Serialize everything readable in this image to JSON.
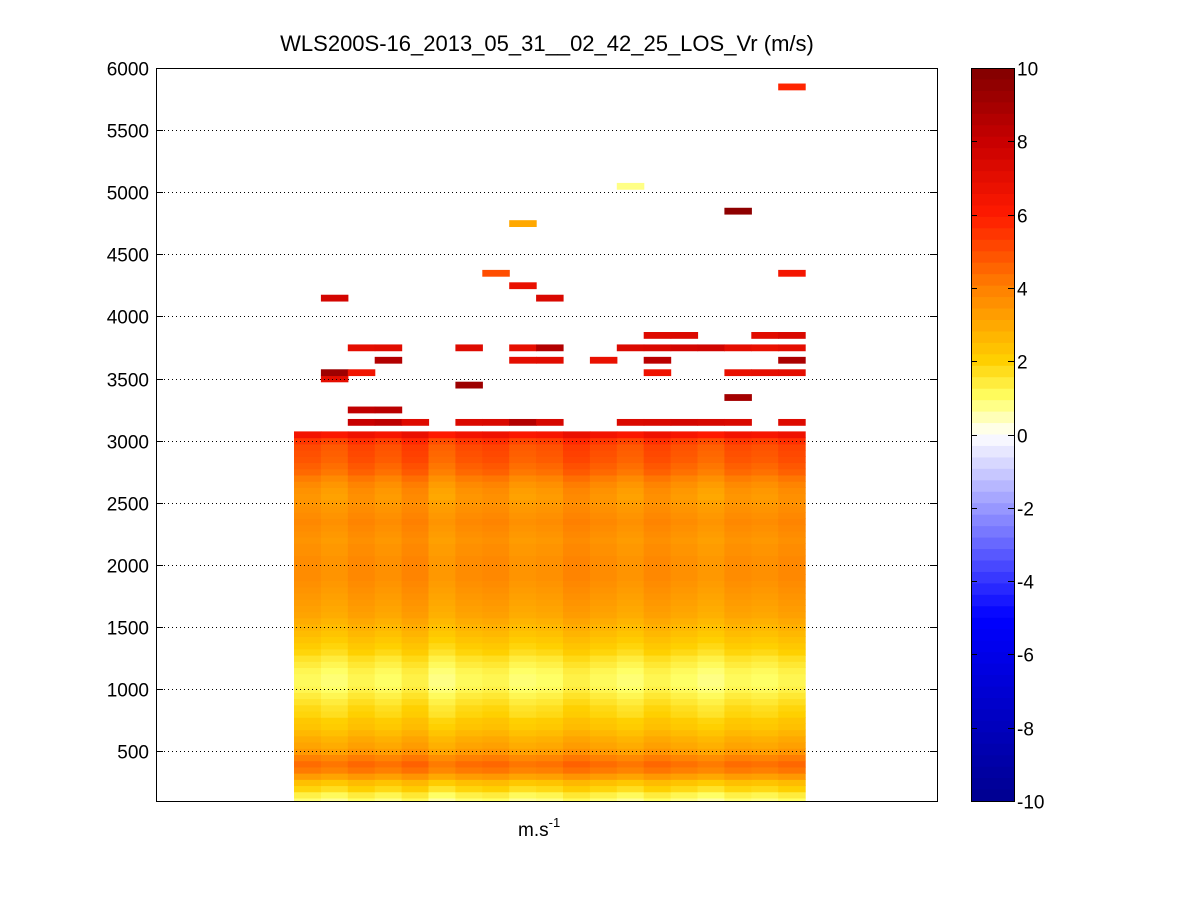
{
  "chart_data": {
    "type": "heatmap",
    "title": "WLS200S-16_2013_05_31__02_42_25_LOS_Vr (m/s)",
    "xlabel": "m.s",
    "xlabel_superscript": "-1",
    "ylabel": "",
    "ylim": [
      100,
      6000
    ],
    "yticks": [
      500,
      1000,
      1500,
      2000,
      2500,
      3000,
      3500,
      4000,
      4500,
      5000,
      5500,
      6000
    ],
    "y_grid": "dotted",
    "x_tick_labels": "none",
    "columns": 19,
    "colorbar": {
      "range": [
        -10,
        10
      ],
      "ticks": [
        10,
        8,
        6,
        4,
        2,
        0,
        -2,
        -4,
        -6,
        -8,
        -10
      ],
      "colormap": "blue-white-yellow-red",
      "colors": {
        "-10": "#00008f",
        "-5": "#0000ff",
        "0": "#ffffff",
        "1": "#ffff66",
        "2": "#ffd000",
        "4": "#ff8000",
        "6": "#ff1a00",
        "8": "#c80000",
        "10": "#800000"
      }
    },
    "profile": [
      [
        100,
        0.8
      ],
      [
        150,
        1.2
      ],
      [
        200,
        1.8
      ],
      [
        250,
        2.3
      ],
      [
        300,
        3.2
      ],
      [
        350,
        4.0
      ],
      [
        400,
        4.3
      ],
      [
        450,
        3.9
      ],
      [
        500,
        3.3
      ],
      [
        550,
        3.0
      ],
      [
        600,
        2.8
      ],
      [
        650,
        2.5
      ],
      [
        700,
        2.2
      ],
      [
        750,
        2.1
      ],
      [
        800,
        1.8
      ],
      [
        850,
        1.7
      ],
      [
        900,
        1.5
      ],
      [
        950,
        1.3
      ],
      [
        1000,
        1.1
      ],
      [
        1050,
        1.0
      ],
      [
        1100,
        1.0
      ],
      [
        1150,
        1.1
      ],
      [
        1200,
        1.3
      ],
      [
        1250,
        1.5
      ],
      [
        1300,
        1.8
      ],
      [
        1350,
        2.0
      ],
      [
        1400,
        2.2
      ],
      [
        1450,
        2.4
      ],
      [
        1500,
        2.6
      ],
      [
        1550,
        2.8
      ],
      [
        1600,
        3.0
      ],
      [
        1650,
        3.1
      ],
      [
        1700,
        3.2
      ],
      [
        1750,
        3.3
      ],
      [
        1800,
        3.4
      ],
      [
        1850,
        3.5
      ],
      [
        1900,
        3.6
      ],
      [
        1950,
        3.6
      ],
      [
        2000,
        3.6
      ],
      [
        2050,
        3.6
      ],
      [
        2100,
        3.5
      ],
      [
        2150,
        3.5
      ],
      [
        2200,
        3.4
      ],
      [
        2250,
        3.5
      ],
      [
        2300,
        3.6
      ],
      [
        2350,
        3.7
      ],
      [
        2400,
        3.6
      ],
      [
        2450,
        3.5
      ],
      [
        2500,
        3.4
      ],
      [
        2550,
        3.3
      ],
      [
        2600,
        3.4
      ],
      [
        2650,
        3.6
      ],
      [
        2700,
        3.9
      ],
      [
        2750,
        4.3
      ],
      [
        2800,
        4.5
      ],
      [
        2850,
        4.7
      ],
      [
        2900,
        4.8
      ],
      [
        2950,
        4.9
      ],
      [
        3000,
        5.3
      ],
      [
        3050,
        6.3
      ]
    ],
    "column_offsets": [
      0.1,
      -0.1,
      0.2,
      0.0,
      0.3,
      -0.2,
      0.1,
      0.2,
      -0.1,
      0.0,
      0.3,
      0.1,
      -0.1,
      0.2,
      0.0,
      -0.2,
      0.1,
      0.0,
      0.2
    ],
    "sparse_cells": [
      [
        2,
        3150,
        8.0
      ],
      [
        3,
        3150,
        8.3
      ],
      [
        4,
        3150,
        7.2
      ],
      [
        6,
        3150,
        7.3
      ],
      [
        7,
        3150,
        7.4
      ],
      [
        8,
        3150,
        8.6
      ],
      [
        9,
        3150,
        7.5
      ],
      [
        12,
        3150,
        7.3
      ],
      [
        13,
        3150,
        7.4
      ],
      [
        14,
        3150,
        7.6
      ],
      [
        15,
        3150,
        7.5
      ],
      [
        16,
        3150,
        7.4
      ],
      [
        18,
        3150,
        7.2
      ],
      [
        2,
        3250,
        8.2
      ],
      [
        3,
        3250,
        8.4
      ],
      [
        16,
        3350,
        9.0
      ],
      [
        6,
        3450,
        9.2
      ],
      [
        1,
        3500,
        7.0
      ],
      [
        1,
        3550,
        9.2
      ],
      [
        2,
        3550,
        6.5
      ],
      [
        13,
        3550,
        6.6
      ],
      [
        16,
        3550,
        6.8
      ],
      [
        17,
        3550,
        6.9
      ],
      [
        18,
        3550,
        7.0
      ],
      [
        3,
        3650,
        8.6
      ],
      [
        8,
        3650,
        7.0
      ],
      [
        9,
        3650,
        7.1
      ],
      [
        11,
        3650,
        6.8
      ],
      [
        13,
        3650,
        8.4
      ],
      [
        18,
        3650,
        8.8
      ],
      [
        2,
        3750,
        7.0
      ],
      [
        3,
        3750,
        7.1
      ],
      [
        6,
        3750,
        7.2
      ],
      [
        8,
        3750,
        6.9
      ],
      [
        9,
        3750,
        8.6
      ],
      [
        12,
        3750,
        7.3
      ],
      [
        13,
        3750,
        7.4
      ],
      [
        14,
        3750,
        7.6
      ],
      [
        15,
        3750,
        7.7
      ],
      [
        16,
        3750,
        7.0
      ],
      [
        17,
        3750,
        6.8
      ],
      [
        18,
        3750,
        7.0
      ],
      [
        13,
        3850,
        7.2
      ],
      [
        14,
        3850,
        7.3
      ],
      [
        17,
        3850,
        7.1
      ],
      [
        18,
        3850,
        7.4
      ],
      [
        1,
        4150,
        7.6
      ],
      [
        9,
        4150,
        7.4
      ],
      [
        8,
        4250,
        6.8
      ],
      [
        7,
        4350,
        5.0
      ],
      [
        18,
        4350,
        6.4
      ],
      [
        8,
        4750,
        3.0
      ],
      [
        16,
        4850,
        9.6
      ],
      [
        12,
        5050,
        0.8
      ],
      [
        18,
        5850,
        5.8
      ]
    ]
  }
}
